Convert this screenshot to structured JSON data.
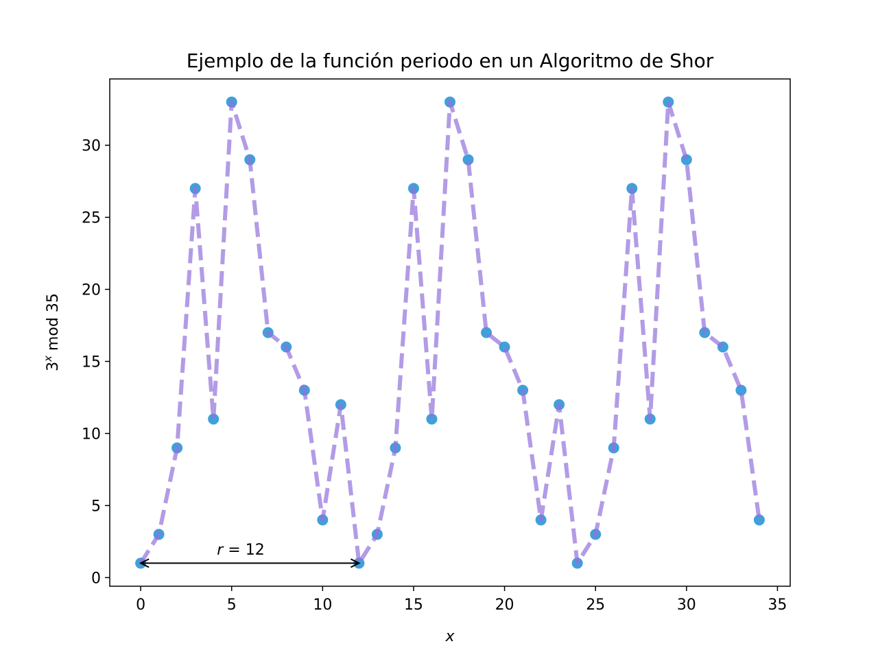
{
  "chart_data": {
    "type": "line",
    "title": "Ejemplo de la función periodo en un Algoritmo de Shor",
    "xlabel": "x",
    "ylabel_base": "3",
    "ylabel_exp": "x",
    "ylabel_rest": " mod 35",
    "xlim": [
      -1.7,
      35.7
    ],
    "ylim": [
      -0.6,
      34.6
    ],
    "xticks": [
      0,
      5,
      10,
      15,
      20,
      25,
      30,
      35
    ],
    "yticks": [
      0,
      5,
      10,
      15,
      20,
      25,
      30
    ],
    "grid": false,
    "x": [
      0,
      1,
      2,
      3,
      4,
      5,
      6,
      7,
      8,
      9,
      10,
      11,
      12,
      13,
      14,
      15,
      16,
      17,
      18,
      19,
      20,
      21,
      22,
      23,
      24,
      25,
      26,
      27,
      28,
      29,
      30,
      31,
      32,
      33,
      34
    ],
    "y": [
      1,
      3,
      9,
      27,
      11,
      33,
      29,
      17,
      16,
      13,
      4,
      12,
      1,
      3,
      9,
      27,
      11,
      33,
      29,
      17,
      16,
      13,
      4,
      12,
      1,
      3,
      9,
      27,
      11,
      33,
      29,
      17,
      16,
      13,
      4
    ],
    "line_style": "dashed",
    "line_color": "#9370db",
    "marker_color": "#1f8fd4",
    "annotation": {
      "label_var": "r",
      "label_rest": " = 12",
      "x_start": 0,
      "x_end": 12,
      "y": 1,
      "style": "double-arrow"
    }
  }
}
